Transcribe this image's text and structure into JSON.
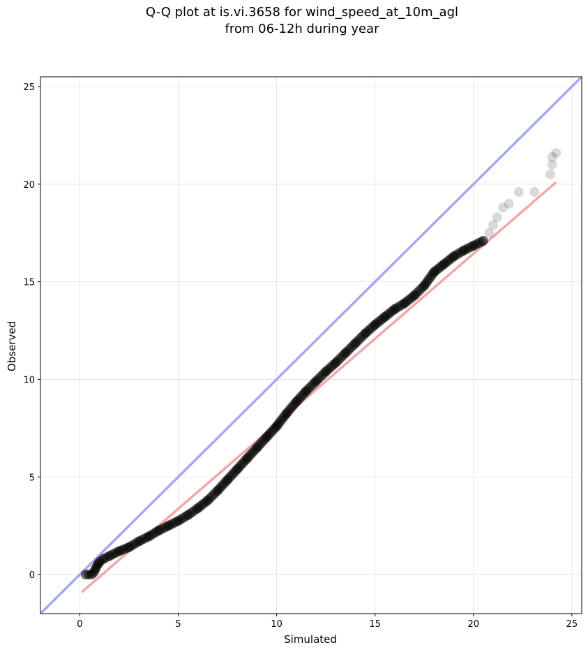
{
  "chart_data": {
    "type": "scatter",
    "title": "Q-Q plot at is.vi.3658 for wind_speed_at_10m_agl",
    "subtitle": "from 06-12h during year",
    "xlabel": "Simulated",
    "ylabel": "Observed",
    "xlim": [
      -2,
      25.5
    ],
    "ylim": [
      -2,
      25.5
    ],
    "xticks": [
      0,
      5,
      10,
      15,
      20,
      25
    ],
    "yticks": [
      0,
      5,
      10,
      15,
      20,
      25
    ],
    "grid": true,
    "reference_lines": [
      {
        "color": "#a6a6f5",
        "points": [
          [
            -2,
            -2
          ],
          [
            25.5,
            25.5
          ]
        ]
      },
      {
        "color": "#f5a6a6",
        "points": [
          [
            0.1,
            -0.9
          ],
          [
            24.2,
            20.1
          ]
        ]
      }
    ],
    "series": [
      {
        "color": "#000000",
        "points": [
          [
            0.3,
            0.0
          ],
          [
            0.45,
            0.0
          ],
          [
            0.6,
            0.0
          ],
          [
            0.7,
            0.1
          ],
          [
            0.8,
            0.3
          ],
          [
            0.9,
            0.5
          ],
          [
            1.0,
            0.65
          ],
          [
            1.2,
            0.8
          ],
          [
            1.5,
            0.95
          ],
          [
            2.0,
            1.2
          ],
          [
            2.5,
            1.4
          ],
          [
            3.0,
            1.7
          ],
          [
            3.5,
            1.95
          ],
          [
            4.0,
            2.25
          ],
          [
            4.5,
            2.5
          ],
          [
            5.0,
            2.75
          ],
          [
            5.5,
            3.05
          ],
          [
            6.0,
            3.4
          ],
          [
            6.5,
            3.8
          ],
          [
            7.0,
            4.3
          ],
          [
            7.5,
            4.85
          ],
          [
            8.0,
            5.4
          ],
          [
            8.5,
            5.95
          ],
          [
            9.0,
            6.5
          ],
          [
            9.5,
            7.05
          ],
          [
            10.0,
            7.6
          ],
          [
            10.5,
            8.25
          ],
          [
            11.0,
            8.85
          ],
          [
            11.5,
            9.4
          ],
          [
            12.0,
            9.9
          ],
          [
            12.5,
            10.4
          ],
          [
            13.0,
            10.85
          ],
          [
            13.5,
            11.35
          ],
          [
            14.0,
            11.85
          ],
          [
            14.5,
            12.35
          ],
          [
            15.0,
            12.8
          ],
          [
            15.5,
            13.2
          ],
          [
            16.0,
            13.6
          ],
          [
            16.5,
            13.9
          ],
          [
            17.0,
            14.3
          ],
          [
            17.5,
            14.8
          ],
          [
            18.0,
            15.5
          ],
          [
            18.5,
            15.9
          ],
          [
            19.0,
            16.3
          ],
          [
            19.5,
            16.6
          ],
          [
            20.0,
            16.85
          ],
          [
            20.5,
            17.1
          ],
          [
            20.8,
            17.5
          ],
          [
            21.0,
            17.9
          ],
          [
            21.2,
            18.3
          ],
          [
            21.5,
            18.8
          ],
          [
            21.8,
            19.0
          ],
          [
            22.3,
            19.6
          ],
          [
            23.1,
            19.6
          ],
          [
            23.9,
            20.5
          ],
          [
            24.0,
            21.0
          ],
          [
            24.0,
            21.4
          ],
          [
            24.2,
            21.6
          ]
        ]
      }
    ]
  }
}
